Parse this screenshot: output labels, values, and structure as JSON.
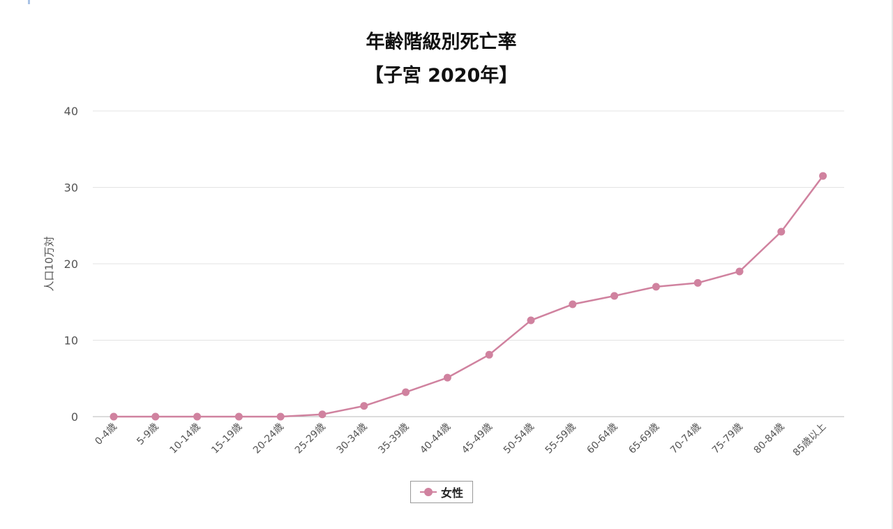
{
  "chart_data": {
    "type": "line",
    "title": "年齢階級別死亡率",
    "subtitle": "【子宮 2020年】",
    "ylabel": "人口10万対",
    "xlabel": "",
    "ylim": [
      0,
      40
    ],
    "yticks": [
      0,
      10,
      20,
      30,
      40
    ],
    "grid": true,
    "legend_position": "bottom-center",
    "categories": [
      "0-4歳",
      "5-9歳",
      "10-14歳",
      "15-19歳",
      "20-24歳",
      "25-29歳",
      "30-34歳",
      "35-39歳",
      "40-44歳",
      "45-49歳",
      "50-54歳",
      "55-59歳",
      "60-64歳",
      "65-69歳",
      "70-74歳",
      "75-79歳",
      "80-84歳",
      "85歳以上"
    ],
    "series": [
      {
        "name": "女性",
        "color": "#d0829f",
        "values": [
          0,
          0,
          0,
          0,
          0,
          0.3,
          1.4,
          3.2,
          5.1,
          8.1,
          12.6,
          14.7,
          15.8,
          17.0,
          17.5,
          19.0,
          24.2,
          31.5
        ]
      }
    ]
  }
}
